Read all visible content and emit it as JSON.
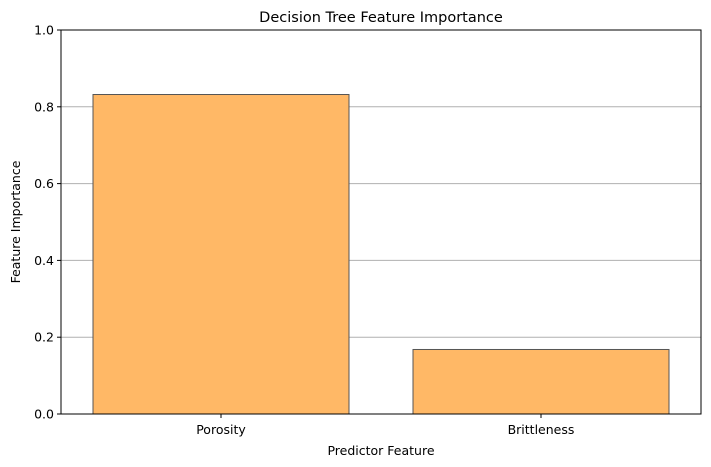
{
  "chart_data": {
    "type": "bar",
    "title": "Decision Tree Feature Importance",
    "xlabel": "Predictor Feature",
    "ylabel": "Feature Importance",
    "categories": [
      "Porosity",
      "Brittleness"
    ],
    "values": [
      0.832,
      0.168
    ],
    "ylim": [
      0,
      1
    ],
    "yticks": [
      0.0,
      0.2,
      0.4,
      0.6,
      0.8,
      1.0
    ],
    "ytick_labels": [
      "0.0",
      "0.2",
      "0.4",
      "0.6",
      "0.8",
      "1.0"
    ],
    "grid": "y-axis only",
    "legend": "none",
    "colors": {
      "bar_fill": "#ffb866",
      "bar_edge": "#555555",
      "grid": "#b0b0b0",
      "axis": "#000000"
    }
  }
}
